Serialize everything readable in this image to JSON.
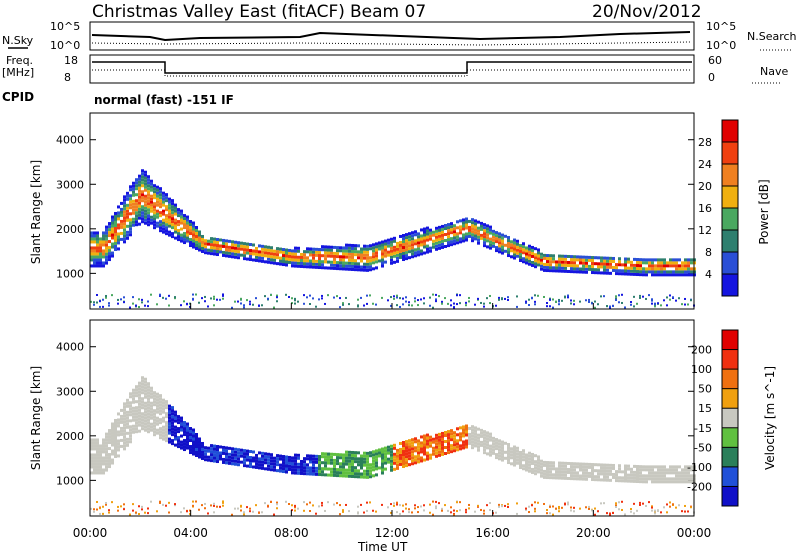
{
  "header": {
    "title": "Christmas Valley East (fitACF)",
    "beam": "Beam 07",
    "date": "20/Nov/2012"
  },
  "params": {
    "nsky_label": "N.Sky",
    "nsky_ticks": [
      "10^5",
      "10^0"
    ],
    "nsearch_label": "N.Search",
    "nsearch_ticks": [
      "10^5",
      "10^0"
    ],
    "freq_label": "Freq.",
    "freq_unit": "[MHz]",
    "freq_ticks": [
      "18",
      "8"
    ],
    "nave_label": "Nave",
    "nave_ticks": [
      "60",
      "0"
    ],
    "cpid_label": "CPID",
    "cpid_value": "normal (fast) -151 IF"
  },
  "colors": {
    "power": [
      "#1515e0",
      "#2a4fd6",
      "#2e7f6f",
      "#4aa860",
      "#f0b010",
      "#f08020",
      "#f04010",
      "#e00000"
    ],
    "velocity": [
      "#1010c8",
      "#2050d8",
      "#2a7f5a",
      "#60c040",
      "#c8c8c0",
      "#f0a010",
      "#f07010",
      "#f03010",
      "#e00000"
    ]
  },
  "chart_data": [
    {
      "type": "heatmap",
      "quantity": "power",
      "ylabel": "Slant Range [km]",
      "yticks": [
        1000,
        2000,
        3000,
        4000
      ],
      "ylim": [
        200,
        4600
      ],
      "colorbar_label": "Power [dB]",
      "colorbar_ticks": [
        "4",
        "8",
        "12",
        "16",
        "20",
        "24",
        "28"
      ],
      "approx_structure": [
        {
          "x": 0.5,
          "y": [
            1200,
            2000
          ]
        },
        {
          "x": 2.0,
          "y": [
            2200,
            3400
          ]
        },
        {
          "x": 4.5,
          "y": [
            1500,
            1900
          ]
        },
        {
          "x": 8.0,
          "y": [
            1200,
            1600
          ]
        },
        {
          "x": 11.0,
          "y": [
            1100,
            1700
          ]
        },
        {
          "x": 15.0,
          "y": [
            1800,
            2300
          ]
        },
        {
          "x": 18.0,
          "y": [
            1100,
            1500
          ]
        },
        {
          "x": 22.0,
          "y": [
            1000,
            1400
          ]
        }
      ]
    },
    {
      "type": "heatmap",
      "quantity": "velocity",
      "ylabel": "Slant Range [km]",
      "yticks": [
        1000,
        2000,
        3000,
        4000
      ],
      "ylim": [
        200,
        4600
      ],
      "colorbar_label": "Velocity [m s^-1]",
      "colorbar_ticks": [
        "-200",
        "-100",
        "-50",
        "-15",
        "15",
        "50",
        "100",
        "200"
      ],
      "xlabel": "Time UT",
      "xticks": [
        "00:00",
        "04:00",
        "08:00",
        "12:00",
        "16:00",
        "20:00",
        "00:00"
      ],
      "xlim_hours": [
        0,
        24
      ]
    }
  ]
}
